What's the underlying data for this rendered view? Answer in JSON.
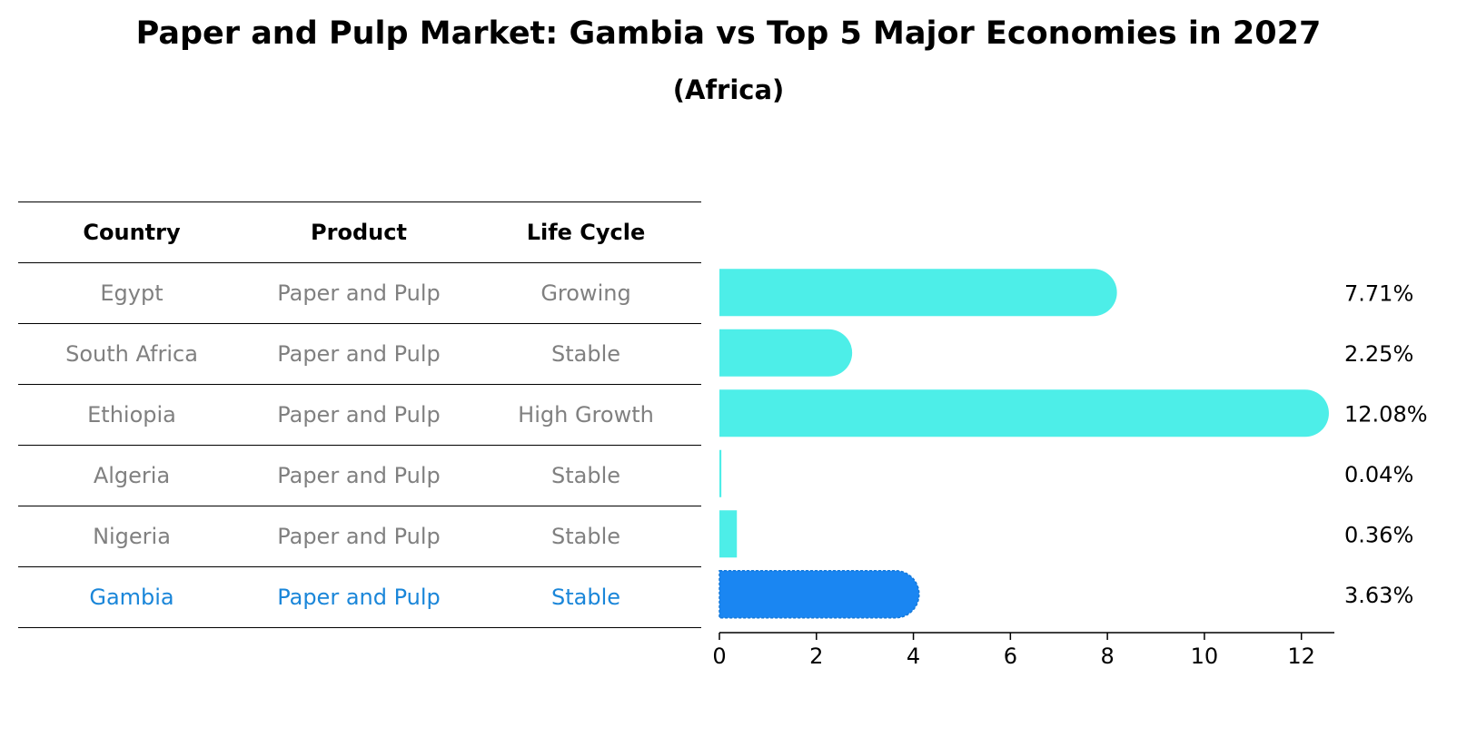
{
  "title": "Paper and Pulp Market: Gambia vs Top 5 Major Economies in 2027",
  "subtitle": "(Africa)",
  "table": {
    "headers": [
      "Country",
      "Product",
      "Life Cycle"
    ],
    "rows": [
      [
        "Egypt",
        "Paper and Pulp",
        "Growing"
      ],
      [
        "South Africa",
        "Paper and Pulp",
        "Stable"
      ],
      [
        "Ethiopia",
        "Paper and Pulp",
        "High Growth"
      ],
      [
        "Algeria",
        "Paper and Pulp",
        "Stable"
      ],
      [
        "Nigeria",
        "Paper and Pulp",
        "Stable"
      ],
      [
        "Gambia",
        "Paper and Pulp",
        "Stable"
      ]
    ]
  },
  "chart_data": {
    "type": "bar",
    "orientation": "horizontal",
    "categories": [
      "Egypt",
      "South Africa",
      "Ethiopia",
      "Algeria",
      "Nigeria",
      "Gambia"
    ],
    "values": [
      7.71,
      2.25,
      12.08,
      0.04,
      0.36,
      3.63
    ],
    "value_labels": [
      "7.71%",
      "2.25%",
      "12.08%",
      "0.04%",
      "0.36%",
      "3.63%"
    ],
    "highlight_index": 5,
    "xlim": [
      0,
      12.68
    ],
    "xticks": [
      0,
      2,
      4,
      6,
      8,
      10,
      12
    ],
    "grid": false,
    "colors": {
      "bar": "#4deee8",
      "highlight_bar": "#1a86f2",
      "highlight_text": "#1a86d9",
      "muted_text": "#808080"
    }
  }
}
